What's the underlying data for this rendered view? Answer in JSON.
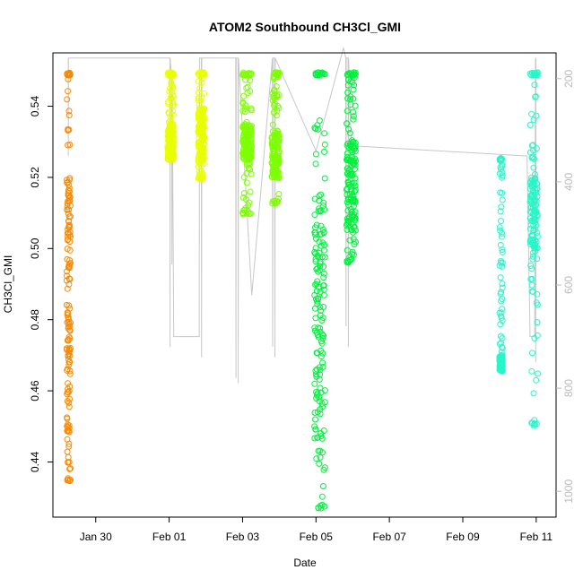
{
  "chart_data": {
    "type": "scatter",
    "title": "ATOM2 Southbound CH3Cl_GMI",
    "xlabel": "Date",
    "ylabel": "CH3Cl_GMI",
    "y2label": "",
    "y2_reversed": true,
    "grid": false,
    "legend": "none",
    "xlim": [
      "2017-01-28T20:00",
      "2017-02-11T13:00"
    ],
    "ylim": [
      0.4245,
      0.555
    ],
    "y2lim": [
      150,
      1050
    ],
    "x_ticks": [
      {
        "date": "2017-01-30",
        "label": "Jan 30"
      },
      {
        "date": "2017-02-01",
        "label": "Feb 01"
      },
      {
        "date": "2017-02-03",
        "label": "Feb 03"
      },
      {
        "date": "2017-02-05",
        "label": "Feb 05"
      },
      {
        "date": "2017-02-07",
        "label": "Feb 07"
      },
      {
        "date": "2017-02-09",
        "label": "Feb 09"
      },
      {
        "date": "2017-02-11",
        "label": "Feb 11"
      }
    ],
    "y_ticks": [
      {
        "value": 0.44,
        "label": "0.44"
      },
      {
        "value": 0.46,
        "label": "0.46"
      },
      {
        "value": 0.48,
        "label": "0.48"
      },
      {
        "value": 0.5,
        "label": "0.50"
      },
      {
        "value": 0.52,
        "label": "0.52"
      },
      {
        "value": 0.54,
        "label": "0.54"
      }
    ],
    "y2_ticks": [
      {
        "value": 200,
        "label": "200"
      },
      {
        "value": 400,
        "label": "400"
      },
      {
        "value": 600,
        "label": "600"
      },
      {
        "value": 800,
        "label": "800"
      },
      {
        "value": 1000,
        "label": "1000"
      }
    ],
    "altitude_color": "#c8c8c8",
    "altitude_trace": [
      [
        "2017-01-29T06:00",
        160
      ],
      [
        "2017-01-29T06:05",
        350
      ],
      [
        "2017-01-29T06:10",
        160
      ],
      [
        "2017-02-01T00:30",
        160
      ],
      [
        "2017-02-01T00:35",
        720
      ],
      [
        "2017-02-01T00:40",
        160
      ],
      [
        "2017-02-01T01:40",
        200
      ],
      [
        "2017-02-01T01:50",
        560
      ],
      [
        "2017-02-01T02:00",
        200
      ],
      [
        "2017-02-01T03:00",
        700
      ],
      [
        "2017-02-01T05:00",
        700
      ],
      [
        "2017-02-01T19:40",
        700
      ],
      [
        "2017-02-01T19:50",
        160
      ],
      [
        "2017-02-01T21:00",
        160
      ],
      [
        "2017-02-01T21:10",
        740
      ],
      [
        "2017-02-01T21:20",
        160
      ],
      [
        "2017-02-02T19:30",
        160
      ],
      [
        "2017-02-02T19:40",
        780
      ],
      [
        "2017-02-02T19:50",
        160
      ],
      [
        "2017-02-02T21:00",
        160
      ],
      [
        "2017-02-02T21:10",
        790
      ],
      [
        "2017-02-02T21:20",
        160
      ],
      [
        "2017-02-03T06:00",
        620
      ],
      [
        "2017-02-03T19:30",
        160
      ],
      [
        "2017-02-03T19:40",
        720
      ],
      [
        "2017-02-03T19:50",
        160
      ],
      [
        "2017-02-03T21:00",
        160
      ],
      [
        "2017-02-03T21:10",
        740
      ],
      [
        "2017-02-03T21:20",
        160
      ],
      [
        "2017-02-05T00:00",
        340
      ],
      [
        "2017-02-05T18:00",
        140
      ],
      [
        "2017-02-05T19:30",
        160
      ],
      [
        "2017-02-05T19:40",
        680
      ],
      [
        "2017-02-05T19:50",
        160
      ],
      [
        "2017-02-05T21:00",
        160
      ],
      [
        "2017-02-05T21:10",
        720
      ],
      [
        "2017-02-05T21:20",
        160
      ],
      [
        "2017-02-05T23:00",
        330
      ],
      [
        "2017-02-10T18:00",
        350
      ],
      [
        "2017-02-10T20:00",
        700
      ],
      [
        "2017-02-10T23:00",
        700
      ],
      [
        "2017-02-10T23:30",
        160
      ],
      [
        "2017-02-10T23:40",
        750
      ],
      [
        "2017-02-10T23:50",
        160
      ]
    ],
    "series": [
      {
        "name": "",
        "color": "#f58a07",
        "x_range": [
          "2017-01-29T05:00",
          "2017-01-29T07:30"
        ],
        "y_min": 0.4345,
        "y_max": 0.5495,
        "dense_top": 0.52,
        "dense_bottom": 0.4395
      },
      {
        "name": "",
        "color": "#e8ff00",
        "x_range": [
          "2017-01-31T23:00",
          "2017-02-01T03:00"
        ],
        "y_min": 0.525,
        "y_max": 0.5495,
        "dense_top": 0.535,
        "dense_bottom": 0.525
      },
      {
        "name": "",
        "color": "#e8ff00",
        "x_range": [
          "2017-02-01T19:00",
          "2017-02-01T23:00"
        ],
        "y_min": 0.5195,
        "y_max": 0.5495,
        "dense_top": 0.54,
        "dense_bottom": 0.524
      },
      {
        "name": "",
        "color": "#7dff00",
        "x_range": [
          "2017-02-03T00:00",
          "2017-02-03T06:00"
        ],
        "y_min": 0.5095,
        "y_max": 0.5495,
        "dense_top": 0.535,
        "dense_bottom": 0.525
      },
      {
        "name": "",
        "color": "#7dff00",
        "x_range": [
          "2017-02-03T19:00",
          "2017-02-04T00:00"
        ],
        "y_min": 0.5125,
        "y_max": 0.5495,
        "dense_top": 0.533,
        "dense_bottom": 0.52
      },
      {
        "name": "",
        "color": "#00f03c",
        "x_range": [
          "2017-02-04T23:00",
          "2017-02-05T06:00"
        ],
        "y_min": 0.427,
        "y_max": 0.5495,
        "dense_top": 0.515,
        "dense_bottom": 0.44
      },
      {
        "name": "",
        "color": "#00f03c",
        "x_range": [
          "2017-02-05T20:00",
          "2017-02-06T02:00"
        ],
        "y_min": 0.496,
        "y_max": 0.5495,
        "dense_top": 0.53,
        "dense_bottom": 0.505
      },
      {
        "name": "",
        "color": "#2af5c8",
        "x_range": [
          "2017-02-10T00:00",
          "2017-02-10T02:00"
        ],
        "y_min": 0.4655,
        "y_max": 0.5255,
        "dense_top": 0.47,
        "dense_bottom": 0.4655
      },
      {
        "name": "",
        "color": "#2af5c8",
        "x_range": [
          "2017-02-10T20:00",
          "2017-02-11T01:00"
        ],
        "y_min": 0.45,
        "y_max": 0.5495,
        "dense_top": 0.52,
        "dense_bottom": 0.5
      }
    ]
  }
}
